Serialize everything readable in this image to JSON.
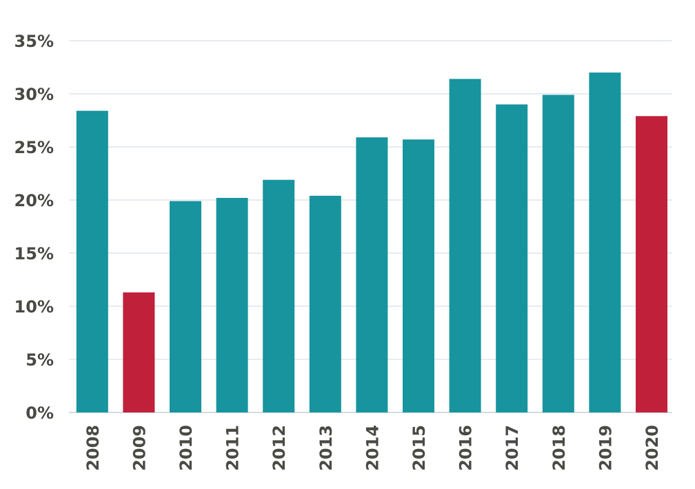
{
  "chart_data": {
    "type": "bar",
    "title": "",
    "xlabel": "",
    "ylabel": "",
    "categories": [
      "2008",
      "2009",
      "2010",
      "2011",
      "2012",
      "2013",
      "2014",
      "2015",
      "2016",
      "2017",
      "2018",
      "2019",
      "2020"
    ],
    "values": [
      28.4,
      11.3,
      19.9,
      20.2,
      21.9,
      20.4,
      25.9,
      25.7,
      31.4,
      29.0,
      29.9,
      32.0,
      27.9
    ],
    "ylim": [
      0,
      35
    ],
    "yticks": [
      0,
      5,
      10,
      15,
      20,
      25,
      30,
      35
    ],
    "ytick_labels": [
      "0%",
      "5%",
      "10%",
      "15%",
      "20%",
      "25%",
      "30%",
      "35%"
    ],
    "grid": true,
    "legend": "none",
    "colors": {
      "default": "#17949e",
      "highlight": "#c0203a"
    },
    "highlighted_categories": [
      "2009",
      "2020"
    ]
  }
}
